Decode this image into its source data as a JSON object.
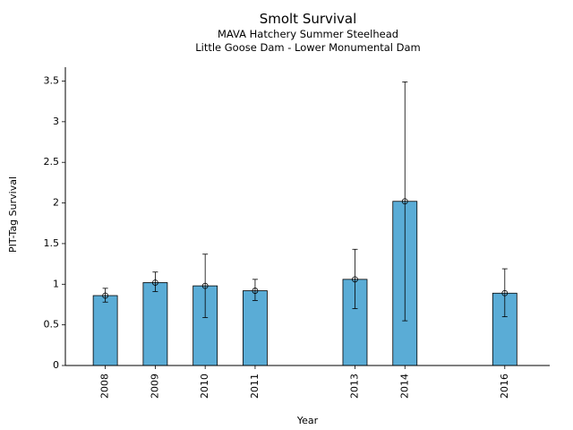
{
  "chart_data": {
    "type": "bar",
    "title": "Smolt Survival",
    "subtitle": [
      "MAVA Hatchery Summer Steelhead",
      "Little Goose Dam - Lower Monumental Dam"
    ],
    "xlabel": "Year",
    "ylabel": "PIT-Tag Survival",
    "x": [
      2008,
      2009,
      2010,
      2011,
      2013,
      2014,
      2016
    ],
    "categories": [
      "2008",
      "2009",
      "2010",
      "2011",
      "2013",
      "2014",
      "2016"
    ],
    "values": [
      0.86,
      1.02,
      0.98,
      0.92,
      1.06,
      2.02,
      0.89
    ],
    "error_low": [
      0.78,
      0.91,
      0.59,
      0.8,
      0.7,
      0.55,
      0.6
    ],
    "error_high": [
      0.95,
      1.15,
      1.37,
      1.06,
      1.43,
      3.49,
      1.19
    ],
    "ylim": [
      0,
      3.5
    ],
    "xlim": [
      2007.2,
      2016.9
    ],
    "yticks": [
      0,
      0.5,
      1,
      1.5,
      2,
      2.5,
      3,
      3.5
    ],
    "ytick_labels": [
      "0",
      "0.5",
      "1",
      "1.5",
      "2",
      "2.5",
      "3",
      "3.5"
    ],
    "bar_color": "#5aacd6",
    "grid": false,
    "legend": "none"
  }
}
